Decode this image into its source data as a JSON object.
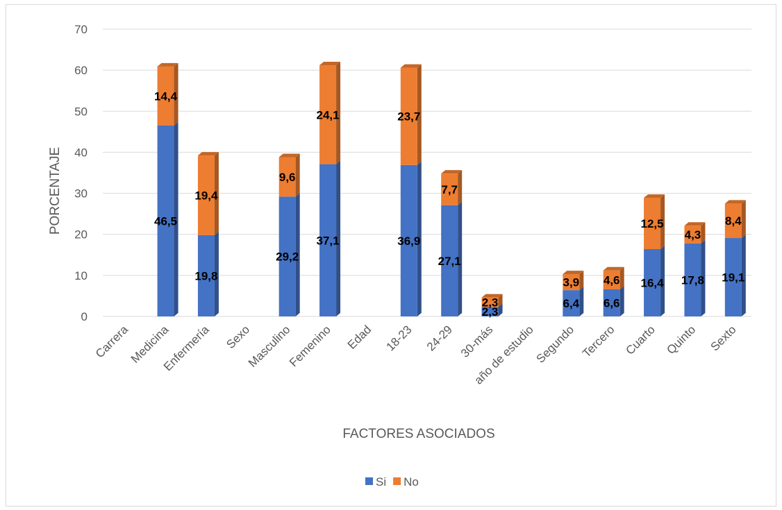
{
  "chart_data": {
    "type": "bar",
    "stacked": true,
    "style": "3d-column",
    "title": "",
    "xlabel": "FACTORES ASOCIADOS",
    "ylabel": "PORCENTAJE",
    "ylim": [
      0,
      70
    ],
    "yticks": [
      0,
      10,
      20,
      30,
      40,
      50,
      60,
      70
    ],
    "grid": true,
    "legend_position": "bottom",
    "categories": [
      "Carrera",
      "Medicina",
      "Enfermería",
      "Sexo",
      "Masculino",
      "Femenino",
      "Edad",
      "18-23",
      "24-29",
      "30-más",
      "año de estudio",
      "Segundo",
      "Tercero",
      "Cuarto",
      "Quinto",
      "Sexto"
    ],
    "series": [
      {
        "name": "Si",
        "color": "#4472c4",
        "values": [
          null,
          46.5,
          19.8,
          null,
          29.2,
          37.1,
          null,
          36.9,
          27.1,
          2.3,
          null,
          6.4,
          6.6,
          16.4,
          17.8,
          19.1
        ],
        "labels": [
          "",
          "46,5",
          "19,8",
          "",
          "29,2",
          "37,1",
          "",
          "36,9",
          "27,1",
          "2,3",
          "",
          "6,4",
          "6,6",
          "16,4",
          "17,8",
          "19,1"
        ]
      },
      {
        "name": "No",
        "color": "#ed7d31",
        "values": [
          null,
          14.4,
          19.4,
          null,
          9.6,
          24.1,
          null,
          23.7,
          7.7,
          2.3,
          null,
          3.9,
          4.6,
          12.5,
          4.3,
          8.4
        ],
        "labels": [
          "",
          "14,4",
          "19,4",
          "",
          "9,6",
          "24,1",
          "",
          "23,7",
          "7,7",
          "2,3",
          "",
          "3,9",
          "4,6",
          "12,5",
          "4,3",
          "8,4"
        ]
      }
    ]
  }
}
